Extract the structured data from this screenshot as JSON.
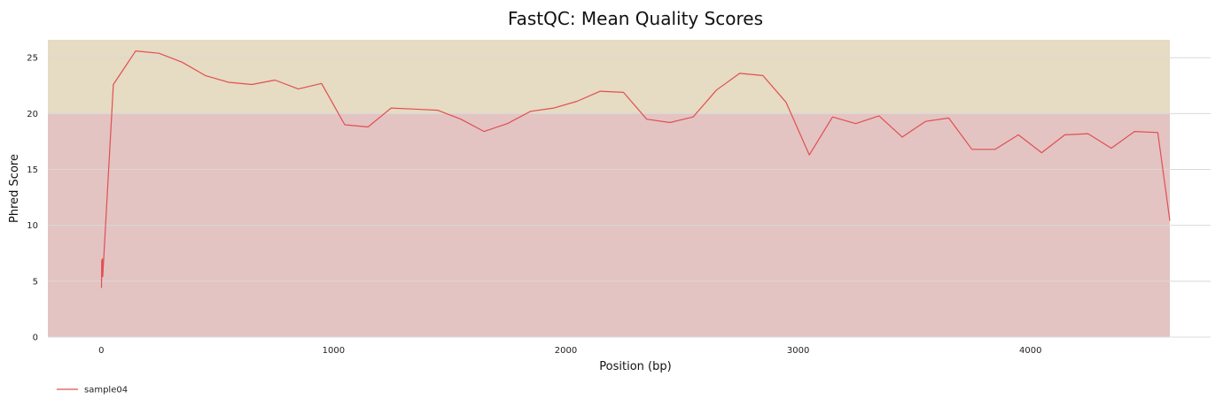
{
  "chart_data": {
    "type": "line",
    "title": "FastQC: Mean Quality Scores",
    "xlabel": "Position (bp)",
    "ylabel": "Phred Score",
    "xlim": [
      -230,
      4600
    ],
    "ylim": [
      0,
      26.6
    ],
    "xticks": [
      0,
      1000,
      2000,
      3000,
      4000
    ],
    "yticks": [
      0,
      5,
      10,
      15,
      20,
      25
    ],
    "grid": "horizontal",
    "legend_position": "bottom-left",
    "bands": [
      {
        "from": 0,
        "to": 20,
        "color": "#e4c3c3"
      },
      {
        "from": 20,
        "to": 26.6,
        "color": "#e6dbc3"
      }
    ],
    "series": [
      {
        "name": "sample04",
        "color": "#e05050",
        "x": [
          1,
          2,
          3,
          5,
          6,
          52,
          148,
          248,
          348,
          448,
          548,
          648,
          748,
          848,
          948,
          1048,
          1148,
          1248,
          1348,
          1448,
          1548,
          1648,
          1748,
          1848,
          1948,
          2048,
          2148,
          2248,
          2348,
          2448,
          2548,
          2648,
          2748,
          2848,
          2948,
          3048,
          3148,
          3248,
          3348,
          3448,
          3548,
          3648,
          3748,
          3848,
          3948,
          4048,
          4148,
          4248,
          4348,
          4448,
          4548,
          4600
        ],
        "y": [
          4.4,
          6.9,
          5.5,
          7.0,
          5.4,
          22.6,
          25.6,
          25.4,
          24.6,
          23.4,
          22.8,
          22.6,
          23.0,
          22.2,
          22.7,
          19.0,
          18.8,
          20.5,
          20.4,
          20.3,
          19.5,
          18.4,
          19.1,
          20.2,
          20.5,
          21.1,
          22.0,
          21.9,
          19.5,
          19.2,
          19.7,
          22.1,
          23.6,
          23.4,
          21.0,
          16.3,
          19.7,
          19.1,
          19.8,
          17.9,
          19.3,
          19.6,
          16.8,
          16.8,
          18.1,
          16.5,
          18.1,
          18.2,
          16.9,
          18.4,
          18.3,
          10.4
        ]
      }
    ]
  }
}
